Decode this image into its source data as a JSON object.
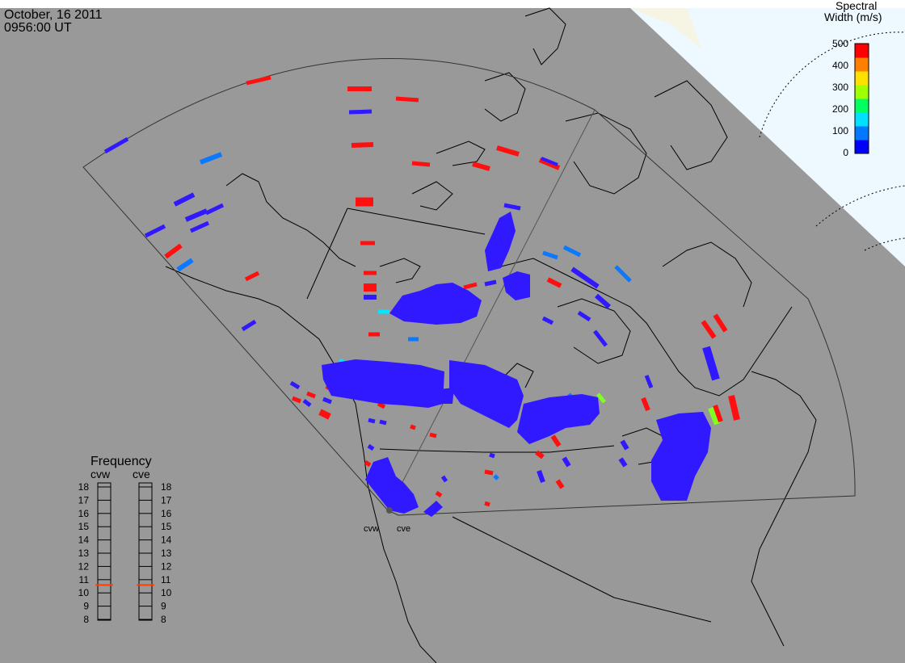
{
  "header": {
    "date": "October, 16 2011",
    "time": "0956:00 UT"
  },
  "colorbar": {
    "title_line1": "Spectral",
    "title_line2": "Width (m/s)",
    "ticks": [
      "500",
      "400",
      "300",
      "200",
      "100",
      "0"
    ],
    "colors": [
      "#0000ff",
      "#0078ff",
      "#00e0ff",
      "#00ff60",
      "#a0ff00",
      "#ffe000",
      "#ff8000",
      "#ff0000"
    ]
  },
  "frequency_panel": {
    "title": "Frequency",
    "radars": [
      "cvw",
      "cve"
    ],
    "scale": [
      "18",
      "17",
      "16",
      "15",
      "14",
      "13",
      "12",
      "11",
      "10",
      "9",
      "8"
    ],
    "indicator_value": 10.6,
    "indicator_color": "#ff4000"
  },
  "sites": [
    "cvw",
    "cve"
  ],
  "colors": {
    "background": "#999999",
    "daylight": "#eef8ff",
    "low_width": "#3018ff",
    "high_width": "#ff1010",
    "mid_width": "#0a78ff",
    "cyan": "#00e8ff",
    "green": "#80ff20"
  }
}
